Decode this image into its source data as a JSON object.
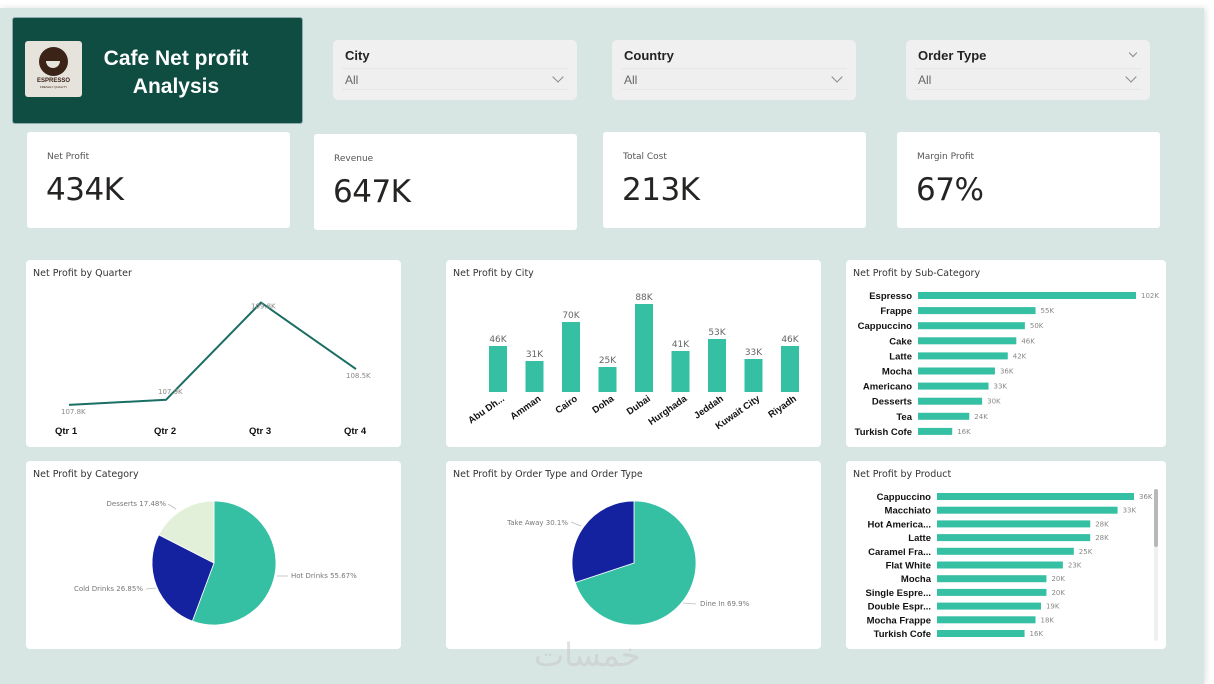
{
  "header": {
    "title_line1": "Cafe Net profit",
    "title_line2": "Analysis",
    "logo_brand": "ESPRESSO",
    "logo_tagline": "FRESHLY QUALITY"
  },
  "slicers": [
    {
      "label": "City",
      "value": "All"
    },
    {
      "label": "Country",
      "value": "All"
    },
    {
      "label": "Order Type",
      "value": "All"
    }
  ],
  "kpis": [
    {
      "label": "Net Profit",
      "value": "434K"
    },
    {
      "label": "Revenue",
      "value": "647K"
    },
    {
      "label": "Total Cost",
      "value": "213K"
    },
    {
      "label": "Margin Profit",
      "value": "67%"
    }
  ],
  "colors": {
    "teal": "#35bfa3",
    "navy": "#1522a0",
    "pale": "#e3f0d9",
    "line": "#1a6e64",
    "header_bg": "#0f4c42"
  },
  "watermark": "خمسات",
  "chart_data": [
    {
      "id": "quarter",
      "type": "line",
      "title": "Net Profit by Quarter",
      "categories": [
        "Qtr 1",
        "Qtr 2",
        "Qtr 3",
        "Qtr 4"
      ],
      "values": [
        107.8,
        107.9,
        109.8,
        108.5
      ],
      "labels": [
        "107.8K",
        "107.9K",
        "109.8K",
        "108.5K"
      ],
      "unit": "K"
    },
    {
      "id": "city",
      "type": "bar",
      "title": "Net Profit by City",
      "categories": [
        "Abu Dh...",
        "Amman",
        "Cairo",
        "Doha",
        "Dubai",
        "Hurghada",
        "Jeddah",
        "Kuwait City",
        "Riyadh"
      ],
      "values": [
        46,
        31,
        70,
        25,
        88,
        41,
        53,
        33,
        46
      ],
      "labels": [
        "46K",
        "31K",
        "70K",
        "25K",
        "88K",
        "41K",
        "53K",
        "33K",
        "46K"
      ],
      "unit": "K"
    },
    {
      "id": "subcategory",
      "type": "bar",
      "orientation": "horizontal",
      "title": "Net Profit by Sub-Category",
      "categories": [
        "Espresso",
        "Frappe",
        "Cappuccino",
        "Cake",
        "Latte",
        "Mocha",
        "Americano",
        "Desserts",
        "Tea",
        "Turkish Cofe"
      ],
      "values": [
        102,
        55,
        50,
        46,
        42,
        36,
        33,
        30,
        24,
        16
      ],
      "labels": [
        "102K",
        "55K",
        "50K",
        "46K",
        "42K",
        "36K",
        "33K",
        "30K",
        "24K",
        "16K"
      ],
      "unit": "K"
    },
    {
      "id": "category",
      "type": "pie",
      "title": "Net Profit by Category",
      "categories": [
        "Hot Drinks",
        "Cold Drinks",
        "Desserts"
      ],
      "values": [
        55.67,
        26.85,
        17.48
      ],
      "labels": [
        "Hot Drinks 55.67%",
        "Cold Drinks 26.85%",
        "Desserts 17.48%"
      ],
      "colors": [
        "#35bfa3",
        "#1522a0",
        "#e3f0d9"
      ]
    },
    {
      "id": "ordertype",
      "type": "pie",
      "title": "Net Profit by Order Type and Order Type",
      "categories": [
        "Dine In",
        "Take Away"
      ],
      "values": [
        69.9,
        30.1
      ],
      "labels": [
        "Dine In 69.9%",
        "Take Away 30.1%"
      ],
      "colors": [
        "#35bfa3",
        "#1522a0"
      ]
    },
    {
      "id": "product",
      "type": "bar",
      "orientation": "horizontal",
      "title": "Net Profit by Product",
      "categories": [
        "Cappuccino",
        "Macchiato",
        "Hot America...",
        "Latte",
        "Caramel Fra...",
        "Flat White",
        "Mocha",
        "Single Espre...",
        "Double Espr...",
        "Mocha Frappe",
        "Turkish Cofe"
      ],
      "values": [
        36,
        33,
        28,
        28,
        25,
        23,
        20,
        20,
        19,
        18,
        16
      ],
      "labels": [
        "36K",
        "33K",
        "28K",
        "28K",
        "25K",
        "23K",
        "20K",
        "20K",
        "19K",
        "18K",
        "16K"
      ],
      "unit": "K"
    }
  ]
}
